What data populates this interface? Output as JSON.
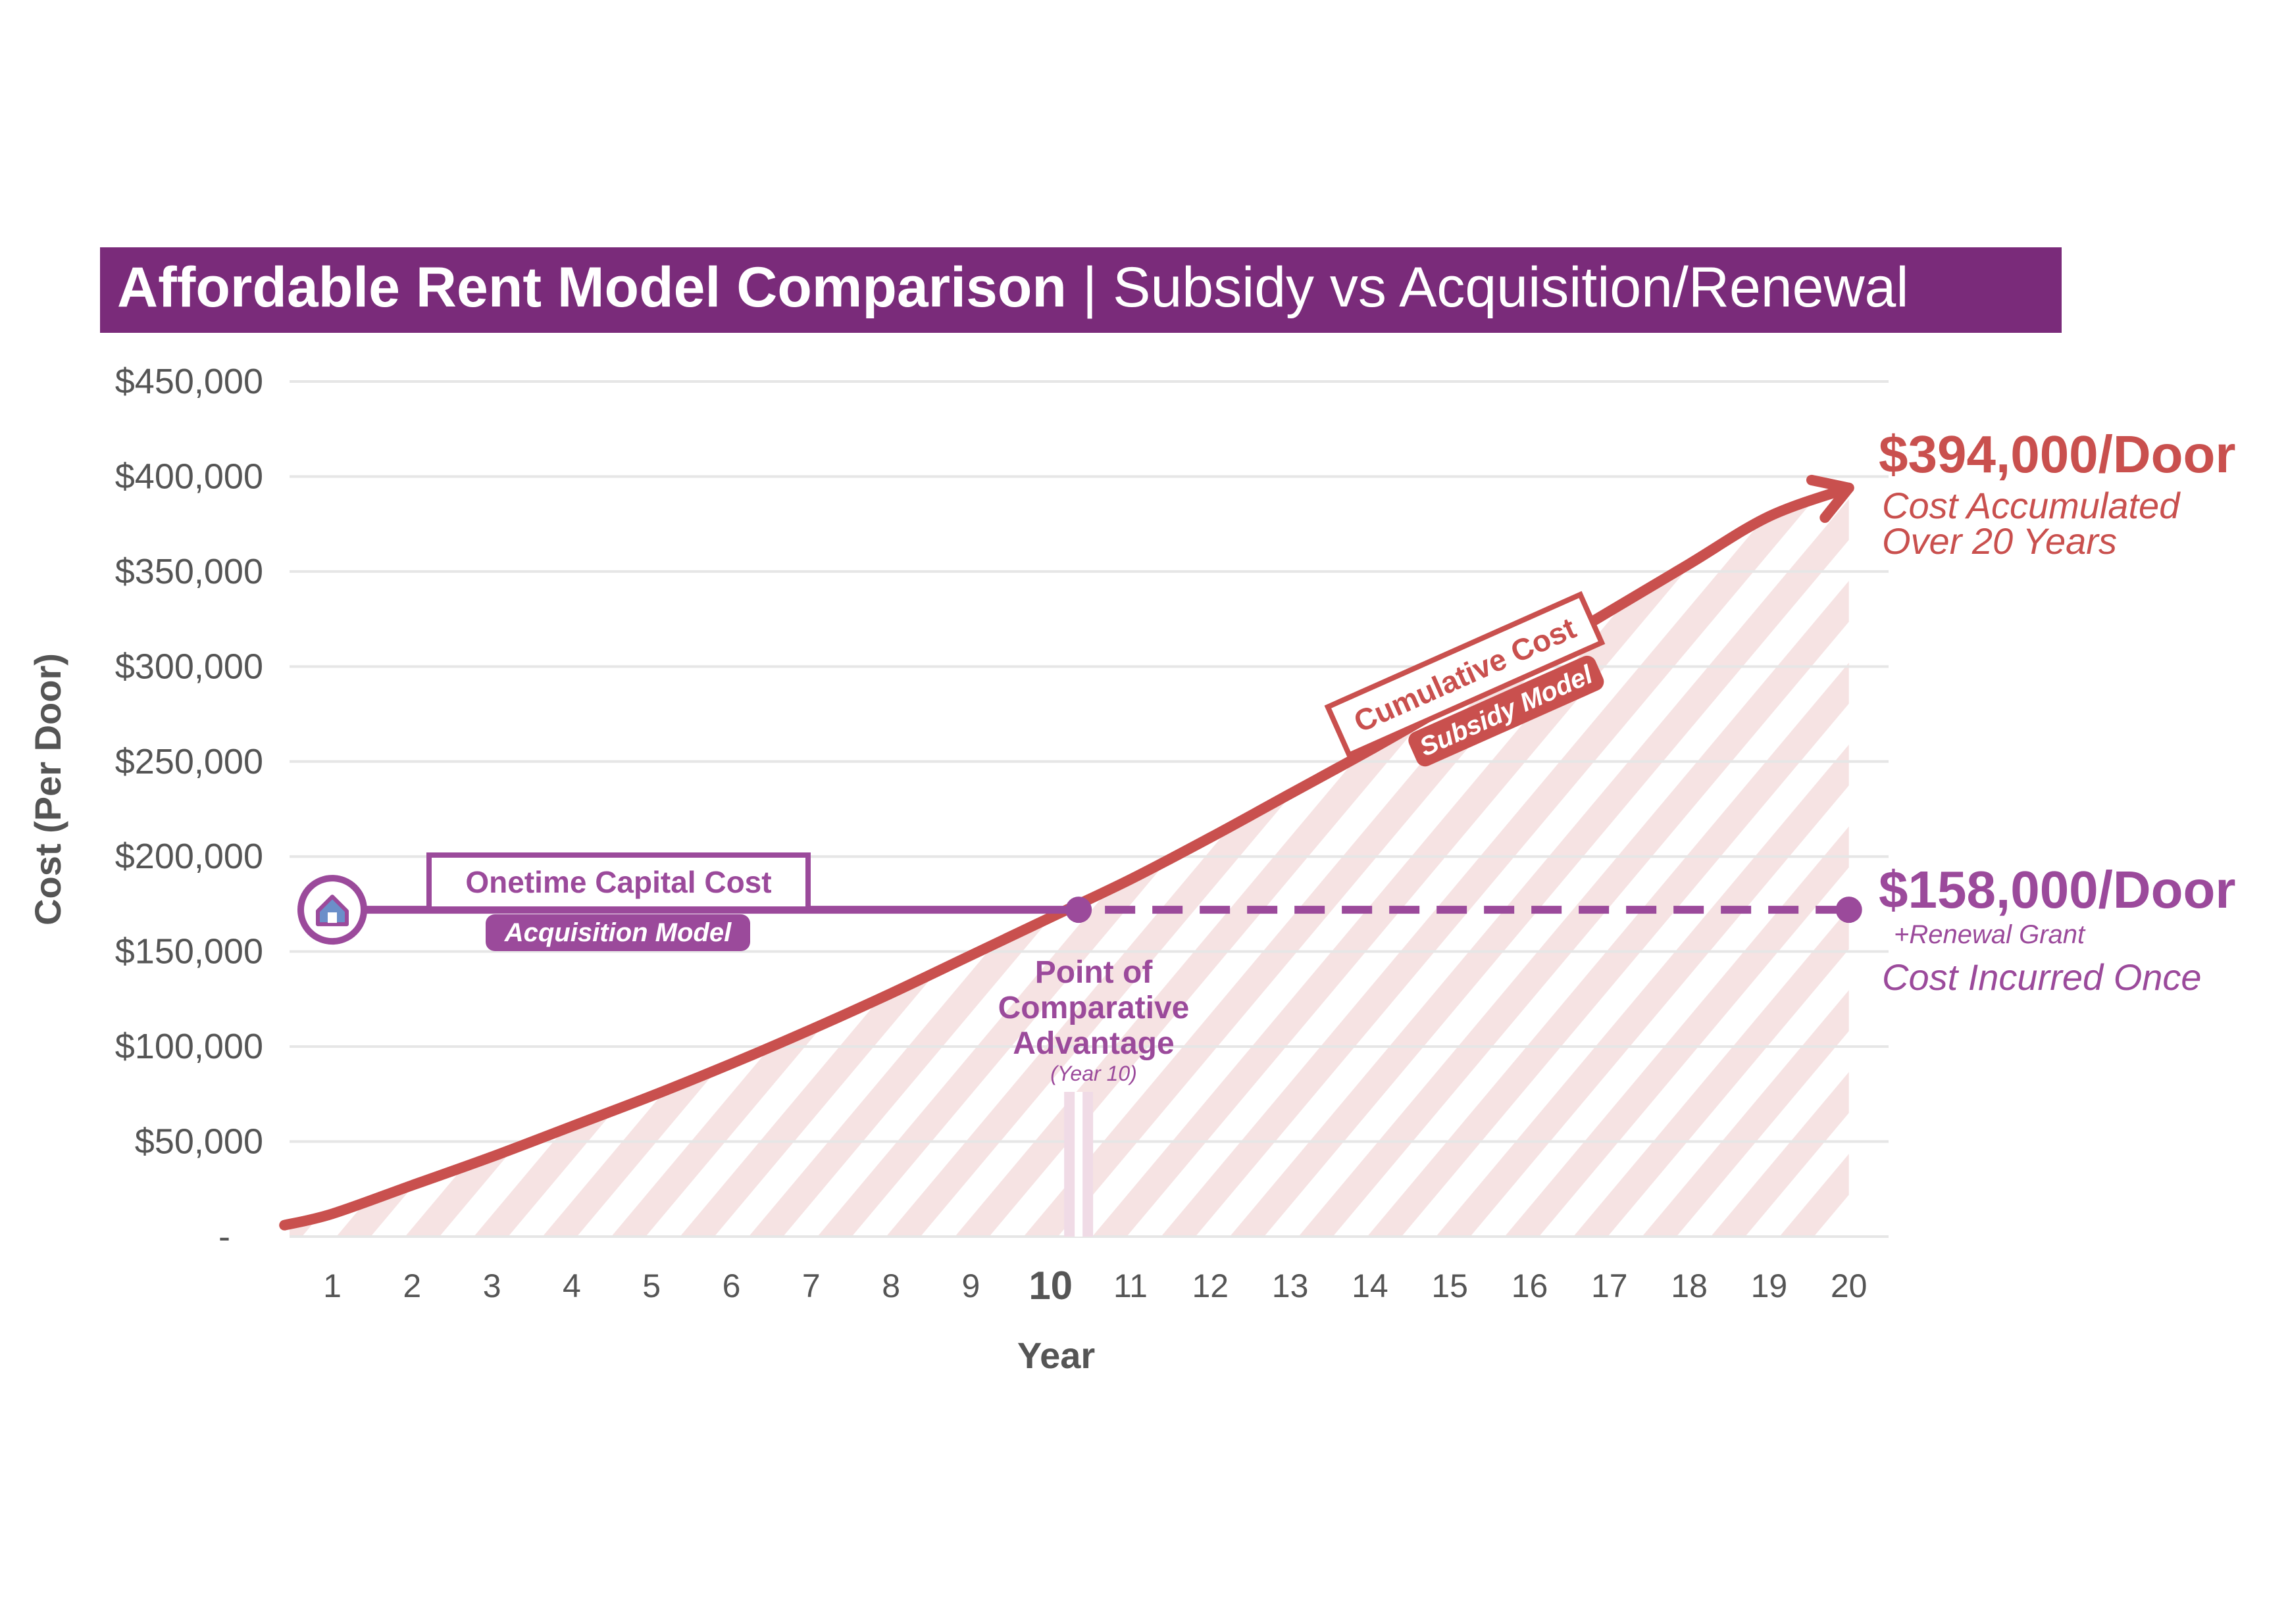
{
  "title": {
    "bold": "Affordable Rent Model Comparison",
    "separator": " | ",
    "light": "Subsidy vs Acquisition/Renewal"
  },
  "colors": {
    "title_bg": "#7a2b7a",
    "subsidy": "#c9504e",
    "acquisition": "#9b4a9b",
    "hatch": "#f6e3e3"
  },
  "chart_data": {
    "type": "line",
    "xlabel": "Year",
    "ylabel": "Cost (Per Door)",
    "x": [
      1,
      2,
      3,
      4,
      5,
      6,
      7,
      8,
      9,
      10,
      11,
      12,
      13,
      14,
      15,
      16,
      17,
      18,
      19,
      20
    ],
    "x_tick_labels": [
      "1",
      "2",
      "3",
      "4",
      "5",
      "6",
      "7",
      "8",
      "9",
      "10",
      "11",
      "12",
      "13",
      "14",
      "15",
      "16",
      "17",
      "18",
      "19",
      "20"
    ],
    "highlight_x_tick": "10",
    "ylim": [
      0,
      450000
    ],
    "y_ticks": [
      0,
      50000,
      100000,
      150000,
      200000,
      250000,
      300000,
      350000,
      400000,
      450000
    ],
    "y_tick_labels": [
      "-",
      "$50,000",
      "$100,000",
      "$150,000",
      "$200,000",
      "$250,000",
      "$300,000",
      "$350,000",
      "$400,000",
      "$450,000"
    ],
    "grid": true,
    "series": [
      {
        "name": "Cumulative Cost",
        "model": "Subsidy Model",
        "style": "solid-arrow",
        "x": [
          0.4,
          1,
          2,
          3,
          4,
          5,
          6,
          7,
          8,
          9,
          10,
          11,
          12,
          13,
          14,
          15,
          16,
          17,
          18,
          19,
          20
        ],
        "values": [
          6000,
          12000,
          27000,
          42000,
          58000,
          74000,
          91000,
          109000,
          128000,
          148000,
          168000,
          188000,
          210000,
          233000,
          256000,
          280000,
          304000,
          329000,
          354000,
          379000,
          394000
        ]
      },
      {
        "name": "Onetime Capital Cost",
        "model": "Acquisition Model",
        "style": "flat",
        "x": [
          1,
          10.35,
          20
        ],
        "values": [
          172000,
          172000,
          172000
        ]
      }
    ],
    "annotations": {
      "subsidy_total": "$394,000/Door",
      "subsidy_line1": "Cost Accumulated",
      "subsidy_line2": "Over 20 Years",
      "acq_total": "$158,000/Door",
      "acq_plus": "+Renewal Grant",
      "acq_note": "Cost Incurred Once",
      "poca_line1": "Point of",
      "poca_line2": "Comparative",
      "poca_line3": "Advantage",
      "poca_year": "(Year 10)",
      "crossover_x": 10.35
    }
  }
}
